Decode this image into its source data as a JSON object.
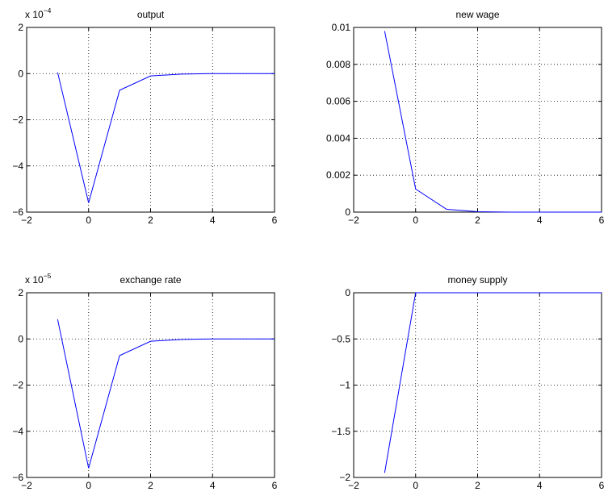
{
  "chart_data": [
    {
      "type": "line",
      "title": "output",
      "xlabel": "",
      "ylabel": "",
      "multiplier": {
        "base": "x 10",
        "exponent": "−4"
      },
      "xlim": [
        -2,
        6
      ],
      "ylim": [
        -6,
        2
      ],
      "xticks": [
        -2,
        0,
        2,
        4,
        6
      ],
      "xticklabels": [
        "−2",
        "0",
        "2",
        "4",
        "6"
      ],
      "yticks": [
        -6,
        -4,
        -2,
        0,
        2
      ],
      "yticklabels": [
        "−6",
        "−4",
        "−2",
        "0",
        "2"
      ],
      "grid": true,
      "series": [
        {
          "color": "#0000ff",
          "x": [
            -1,
            0,
            1,
            2,
            3,
            4,
            5,
            6
          ],
          "y": [
            0.05,
            -5.6,
            -0.72,
            -0.1,
            -0.02,
            0,
            0,
            0
          ]
        }
      ]
    },
    {
      "type": "line",
      "title": "new wage",
      "xlabel": "",
      "ylabel": "",
      "multiplier": null,
      "xlim": [
        -2,
        6
      ],
      "ylim": [
        0,
        0.01
      ],
      "xticks": [
        -2,
        0,
        2,
        4,
        6
      ],
      "xticklabels": [
        "−2",
        "0",
        "2",
        "4",
        "6"
      ],
      "yticks": [
        0,
        0.002,
        0.004,
        0.006,
        0.008,
        0.01
      ],
      "yticklabels": [
        "0",
        "0.002",
        "0.004",
        "0.006",
        "0.008",
        "0.01"
      ],
      "grid": true,
      "series": [
        {
          "color": "#0000ff",
          "x": [
            -1,
            0,
            1,
            2,
            3,
            4,
            5,
            6
          ],
          "y": [
            0.0098,
            0.00125,
            0.00015,
            2e-05,
            0,
            0,
            0,
            0
          ]
        }
      ]
    },
    {
      "type": "line",
      "title": "exchange rate",
      "xlabel": "",
      "ylabel": "",
      "multiplier": {
        "base": "x 10",
        "exponent": "−5"
      },
      "xlim": [
        -2,
        6
      ],
      "ylim": [
        -6,
        2
      ],
      "xticks": [
        -2,
        0,
        2,
        4,
        6
      ],
      "xticklabels": [
        "−2",
        "0",
        "2",
        "4",
        "6"
      ],
      "yticks": [
        -6,
        -4,
        -2,
        0,
        2
      ],
      "yticklabels": [
        "−6",
        "−4",
        "−2",
        "0",
        "2"
      ],
      "grid": true,
      "series": [
        {
          "color": "#0000ff",
          "x": [
            -1,
            0,
            1,
            2,
            3,
            4,
            5,
            6
          ],
          "y": [
            0.85,
            -5.6,
            -0.72,
            -0.1,
            -0.02,
            0,
            0,
            0
          ]
        }
      ]
    },
    {
      "type": "line",
      "title": "money supply",
      "xlabel": "",
      "ylabel": "",
      "multiplier": null,
      "xlim": [
        -2,
        6
      ],
      "ylim": [
        -2,
        0
      ],
      "xticks": [
        -2,
        0,
        2,
        4,
        6
      ],
      "xticklabels": [
        "−2",
        "0",
        "2",
        "4",
        "6"
      ],
      "yticks": [
        -2,
        -1.5,
        -1,
        -0.5,
        0
      ],
      "yticklabels": [
        "−2",
        "−1.5",
        "−1",
        "−0.5",
        "0"
      ],
      "grid": true,
      "series": [
        {
          "color": "#0000ff",
          "x": [
            -1,
            0,
            1,
            2,
            3,
            4,
            5,
            6
          ],
          "y": [
            -1.95,
            0,
            0,
            0,
            0,
            0,
            0,
            0
          ]
        }
      ]
    }
  ]
}
